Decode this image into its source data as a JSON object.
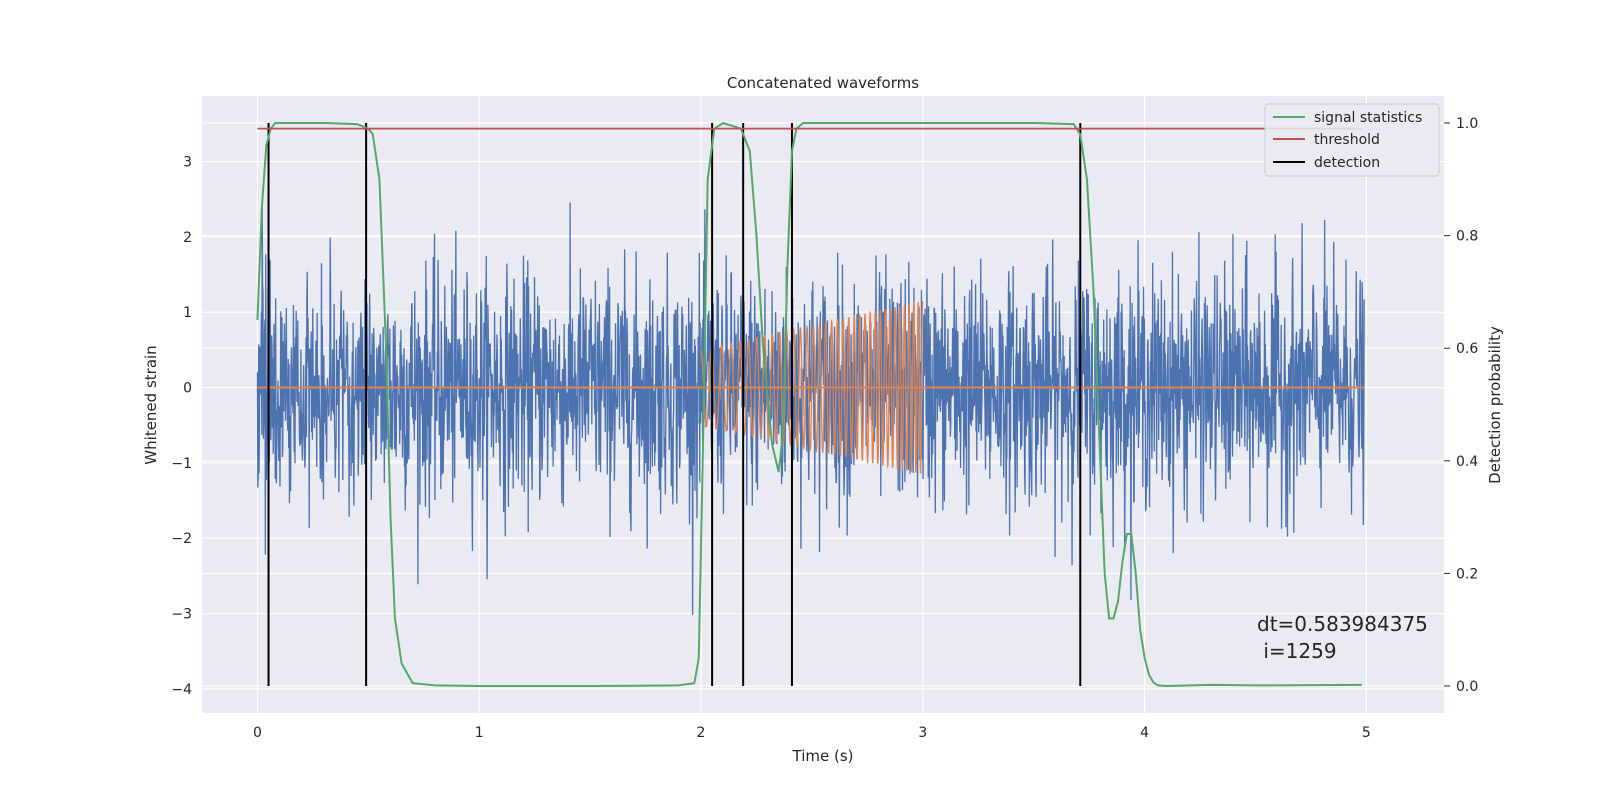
{
  "chart_data": {
    "type": "line",
    "title": "Concatenated waveforms",
    "xlabel": "Time (s)",
    "ylabel": "Whitened strain",
    "y2label": "Detection probability",
    "xlim": [
      -0.25,
      5.35
    ],
    "ylim": [
      -4.32,
      3.87
    ],
    "y2lim": [
      -0.048,
      1.048
    ],
    "xticks": [
      0,
      1,
      2,
      3,
      4,
      5
    ],
    "xtick_labels": [
      "0",
      "1",
      "2",
      "3",
      "4",
      "5"
    ],
    "yticks": [
      -4,
      -3,
      -2,
      -1,
      0,
      1,
      2,
      3
    ],
    "ytick_labels": [
      "−4",
      "−3",
      "−2",
      "−1",
      "0",
      "1",
      "2",
      "3"
    ],
    "y2ticks": [
      0.0,
      0.2,
      0.4,
      0.6,
      0.8,
      1.0
    ],
    "y2tick_labels": [
      "0.0",
      "0.2",
      "0.4",
      "0.6",
      "0.8",
      "1.0"
    ],
    "grid": true,
    "legend_position": "top-right",
    "legend": [
      {
        "label": "signal statistics",
        "color": "#55a868"
      },
      {
        "label": "threshold",
        "color": "#c44e52"
      },
      {
        "label": "detection",
        "color": "#000000"
      }
    ],
    "noise": {
      "name": "whitened strain",
      "color": "#4c72b0",
      "x_start": 0.0,
      "x_end": 4.99,
      "sigma": 0.75,
      "clip": [
        -4.0,
        3.5
      ]
    },
    "injection": {
      "name": "injected signal",
      "color": "#dd8452",
      "x_start": 2.0,
      "x_end": 3.0,
      "amp_start": 0.5,
      "amp_end": 1.15,
      "freq_start": 20,
      "freq_end": 50
    },
    "series": [
      {
        "name": "signal statistics",
        "axis": "right",
        "color": "#55a868",
        "x": [
          0.0,
          0.02,
          0.04,
          0.06,
          0.08,
          0.12,
          0.3,
          0.45,
          0.5,
          0.52,
          0.55,
          0.58,
          0.6,
          0.62,
          0.65,
          0.7,
          0.8,
          1.0,
          1.5,
          1.9,
          1.97,
          1.99,
          2.01,
          2.03,
          2.06,
          2.1,
          2.18,
          2.22,
          2.25,
          2.28,
          2.32,
          2.35,
          2.37,
          2.39,
          2.41,
          2.43,
          2.46,
          2.5,
          3.0,
          3.5,
          3.68,
          3.71,
          3.74,
          3.77,
          3.8,
          3.82,
          3.84,
          3.86,
          3.88,
          3.9,
          3.92,
          3.94,
          3.96,
          3.98,
          4.0,
          4.02,
          4.04,
          4.06,
          4.1,
          4.3,
          4.5,
          4.98
        ],
        "y": [
          0.65,
          0.85,
          0.96,
          0.99,
          1.0,
          1.0,
          1.0,
          0.998,
          0.99,
          0.98,
          0.9,
          0.6,
          0.3,
          0.12,
          0.04,
          0.005,
          0.001,
          0.0,
          0.0,
          0.001,
          0.005,
          0.05,
          0.45,
          0.9,
          0.99,
          1.0,
          0.99,
          0.95,
          0.8,
          0.6,
          0.43,
          0.38,
          0.45,
          0.75,
          0.95,
          0.99,
          1.0,
          1.0,
          1.0,
          1.0,
          0.998,
          0.98,
          0.9,
          0.7,
          0.4,
          0.2,
          0.12,
          0.12,
          0.15,
          0.22,
          0.27,
          0.27,
          0.2,
          0.1,
          0.05,
          0.02,
          0.006,
          0.001,
          0.0,
          0.002,
          0.001,
          0.002
        ]
      },
      {
        "name": "threshold",
        "axis": "right",
        "color": "#c44e52",
        "x": [
          0.0,
          4.98
        ],
        "y": [
          0.99,
          0.99
        ]
      }
    ],
    "detections": [
      0.05,
      0.49,
      2.05,
      2.19,
      2.41,
      3.71
    ],
    "annotation": {
      "text_line1": "dt=0.583984375",
      "text_line2": " i=1259",
      "x": 4.5,
      "y": -3.1
    }
  }
}
